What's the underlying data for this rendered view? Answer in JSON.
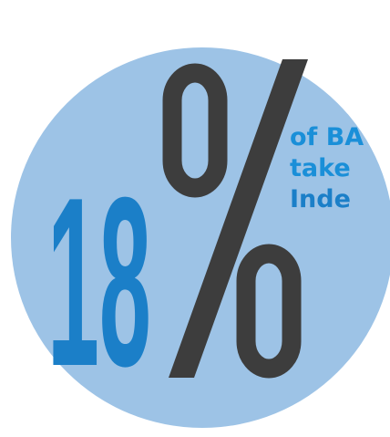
{
  "stat": {
    "number": "18",
    "percent_sign": "%",
    "line1": "of BA",
    "line2": "take",
    "line3": "Inde"
  },
  "colors": {
    "circle": "#9dc3e6",
    "number": "#1b7fc8",
    "percent": "#3d3d3d",
    "text_blue": "#1a8fd8"
  }
}
